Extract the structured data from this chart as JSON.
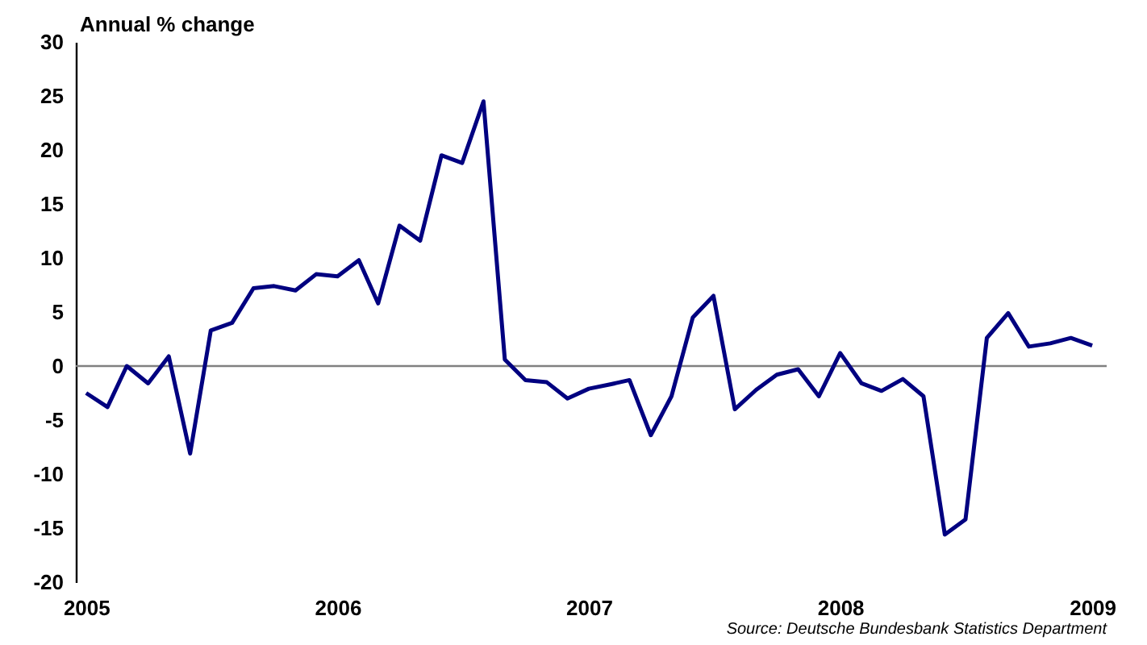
{
  "chart_data": {
    "type": "line",
    "ylabel": "Annual % change",
    "x": [
      "2005-01",
      "2005-02",
      "2005-03",
      "2005-04",
      "2005-05",
      "2005-06",
      "2005-07",
      "2005-08",
      "2005-09",
      "2005-10",
      "2005-11",
      "2005-12",
      "2006-01",
      "2006-02",
      "2006-03",
      "2006-04",
      "2006-05",
      "2006-06",
      "2006-07",
      "2006-08",
      "2006-09",
      "2006-10",
      "2006-11",
      "2006-12",
      "2007-01",
      "2007-02",
      "2007-03",
      "2007-04",
      "2007-05",
      "2007-06",
      "2007-07",
      "2007-08",
      "2007-09",
      "2007-10",
      "2007-11",
      "2007-12",
      "2008-01",
      "2008-02",
      "2008-03",
      "2008-04",
      "2008-05",
      "2008-06",
      "2008-07",
      "2008-08",
      "2008-09",
      "2008-10",
      "2008-11",
      "2008-12",
      "2009-01"
    ],
    "series": [
      {
        "color": "#000080",
        "values": [
          -2.5,
          -3.8,
          0,
          -1.6,
          0.9,
          -8.1,
          3.3,
          4.0,
          7.2,
          7.4,
          7.0,
          8.5,
          8.3,
          9.8,
          5.8,
          13.0,
          11.6,
          19.5,
          18.8,
          24.5,
          0.6,
          -1.3,
          -1.5,
          -3.0,
          -2.1,
          -1.7,
          -1.3,
          -6.4,
          -2.8,
          4.5,
          6.5,
          -4.0,
          -2.2,
          -0.8,
          -0.3,
          -2.8,
          1.2,
          -1.6,
          -2.3,
          -1.2,
          -2.8,
          -15.6,
          -14.2,
          2.6,
          4.9,
          1.8,
          2.1,
          2.6,
          1.9
        ]
      }
    ],
    "xlim": [
      "2004-12-17",
      "2009-01-22"
    ],
    "xticks": [
      "2005",
      "2006",
      "2007",
      "2008",
      "2009"
    ],
    "ylim": [
      -20,
      30
    ],
    "yticks": [
      -20,
      -15,
      -10,
      -5,
      0,
      5,
      10,
      15,
      20,
      25,
      30
    ],
    "ref_lines": [
      {
        "axis": "y",
        "value": 0,
        "color": "#808080"
      }
    ],
    "annotations": [
      "Source: Deutsche Bundesbank Statistics Department"
    ],
    "grid": false,
    "marker": "none",
    "line_style": "solid"
  }
}
